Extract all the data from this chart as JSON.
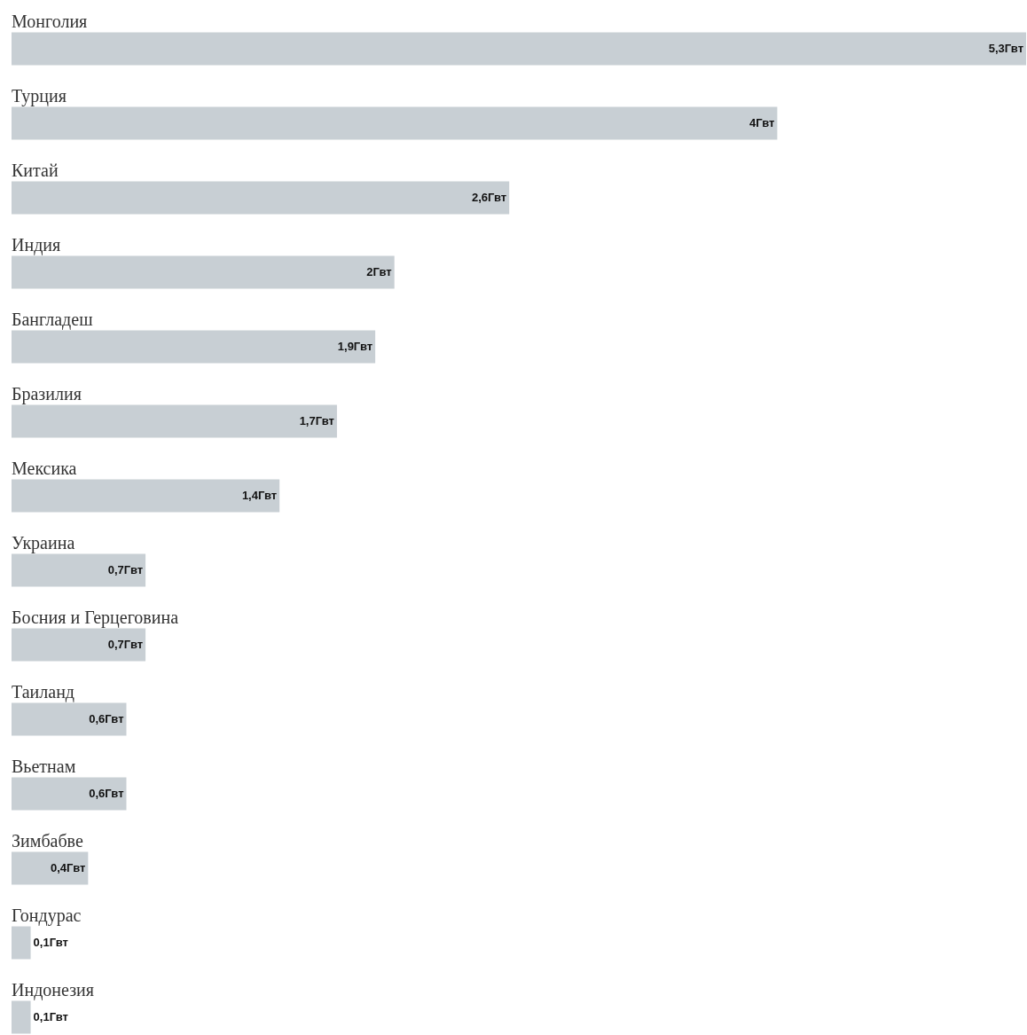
{
  "chart_data": {
    "type": "bar",
    "orientation": "horizontal",
    "categories": [
      "Монголия",
      "Турция",
      "Китай",
      "Индия",
      "Бангладеш",
      "Бразилия",
      "Мексика",
      "Украина",
      "Босния и Герцеговина",
      "Таиланд",
      "Вьетнам",
      "Зимбабве",
      "Гондурас",
      "Индонезия"
    ],
    "values": [
      5.3,
      4,
      2.6,
      2,
      1.9,
      1.7,
      1.4,
      0.7,
      0.7,
      0.6,
      0.6,
      0.4,
      0.1,
      0.1
    ],
    "value_labels": [
      "5,3Гвт",
      "4Гвт",
      "2,6Гвт",
      "2Гвт",
      "1,9Гвт",
      "1,7Гвт",
      "1,4Гвт",
      "0,7Гвт",
      "0,7Гвт",
      "0,6Гвт",
      "0,6Гвт",
      "0,4Гвт",
      "0,1Гвт",
      "0,1Гвт"
    ],
    "color": "#c8cfd4"
  }
}
